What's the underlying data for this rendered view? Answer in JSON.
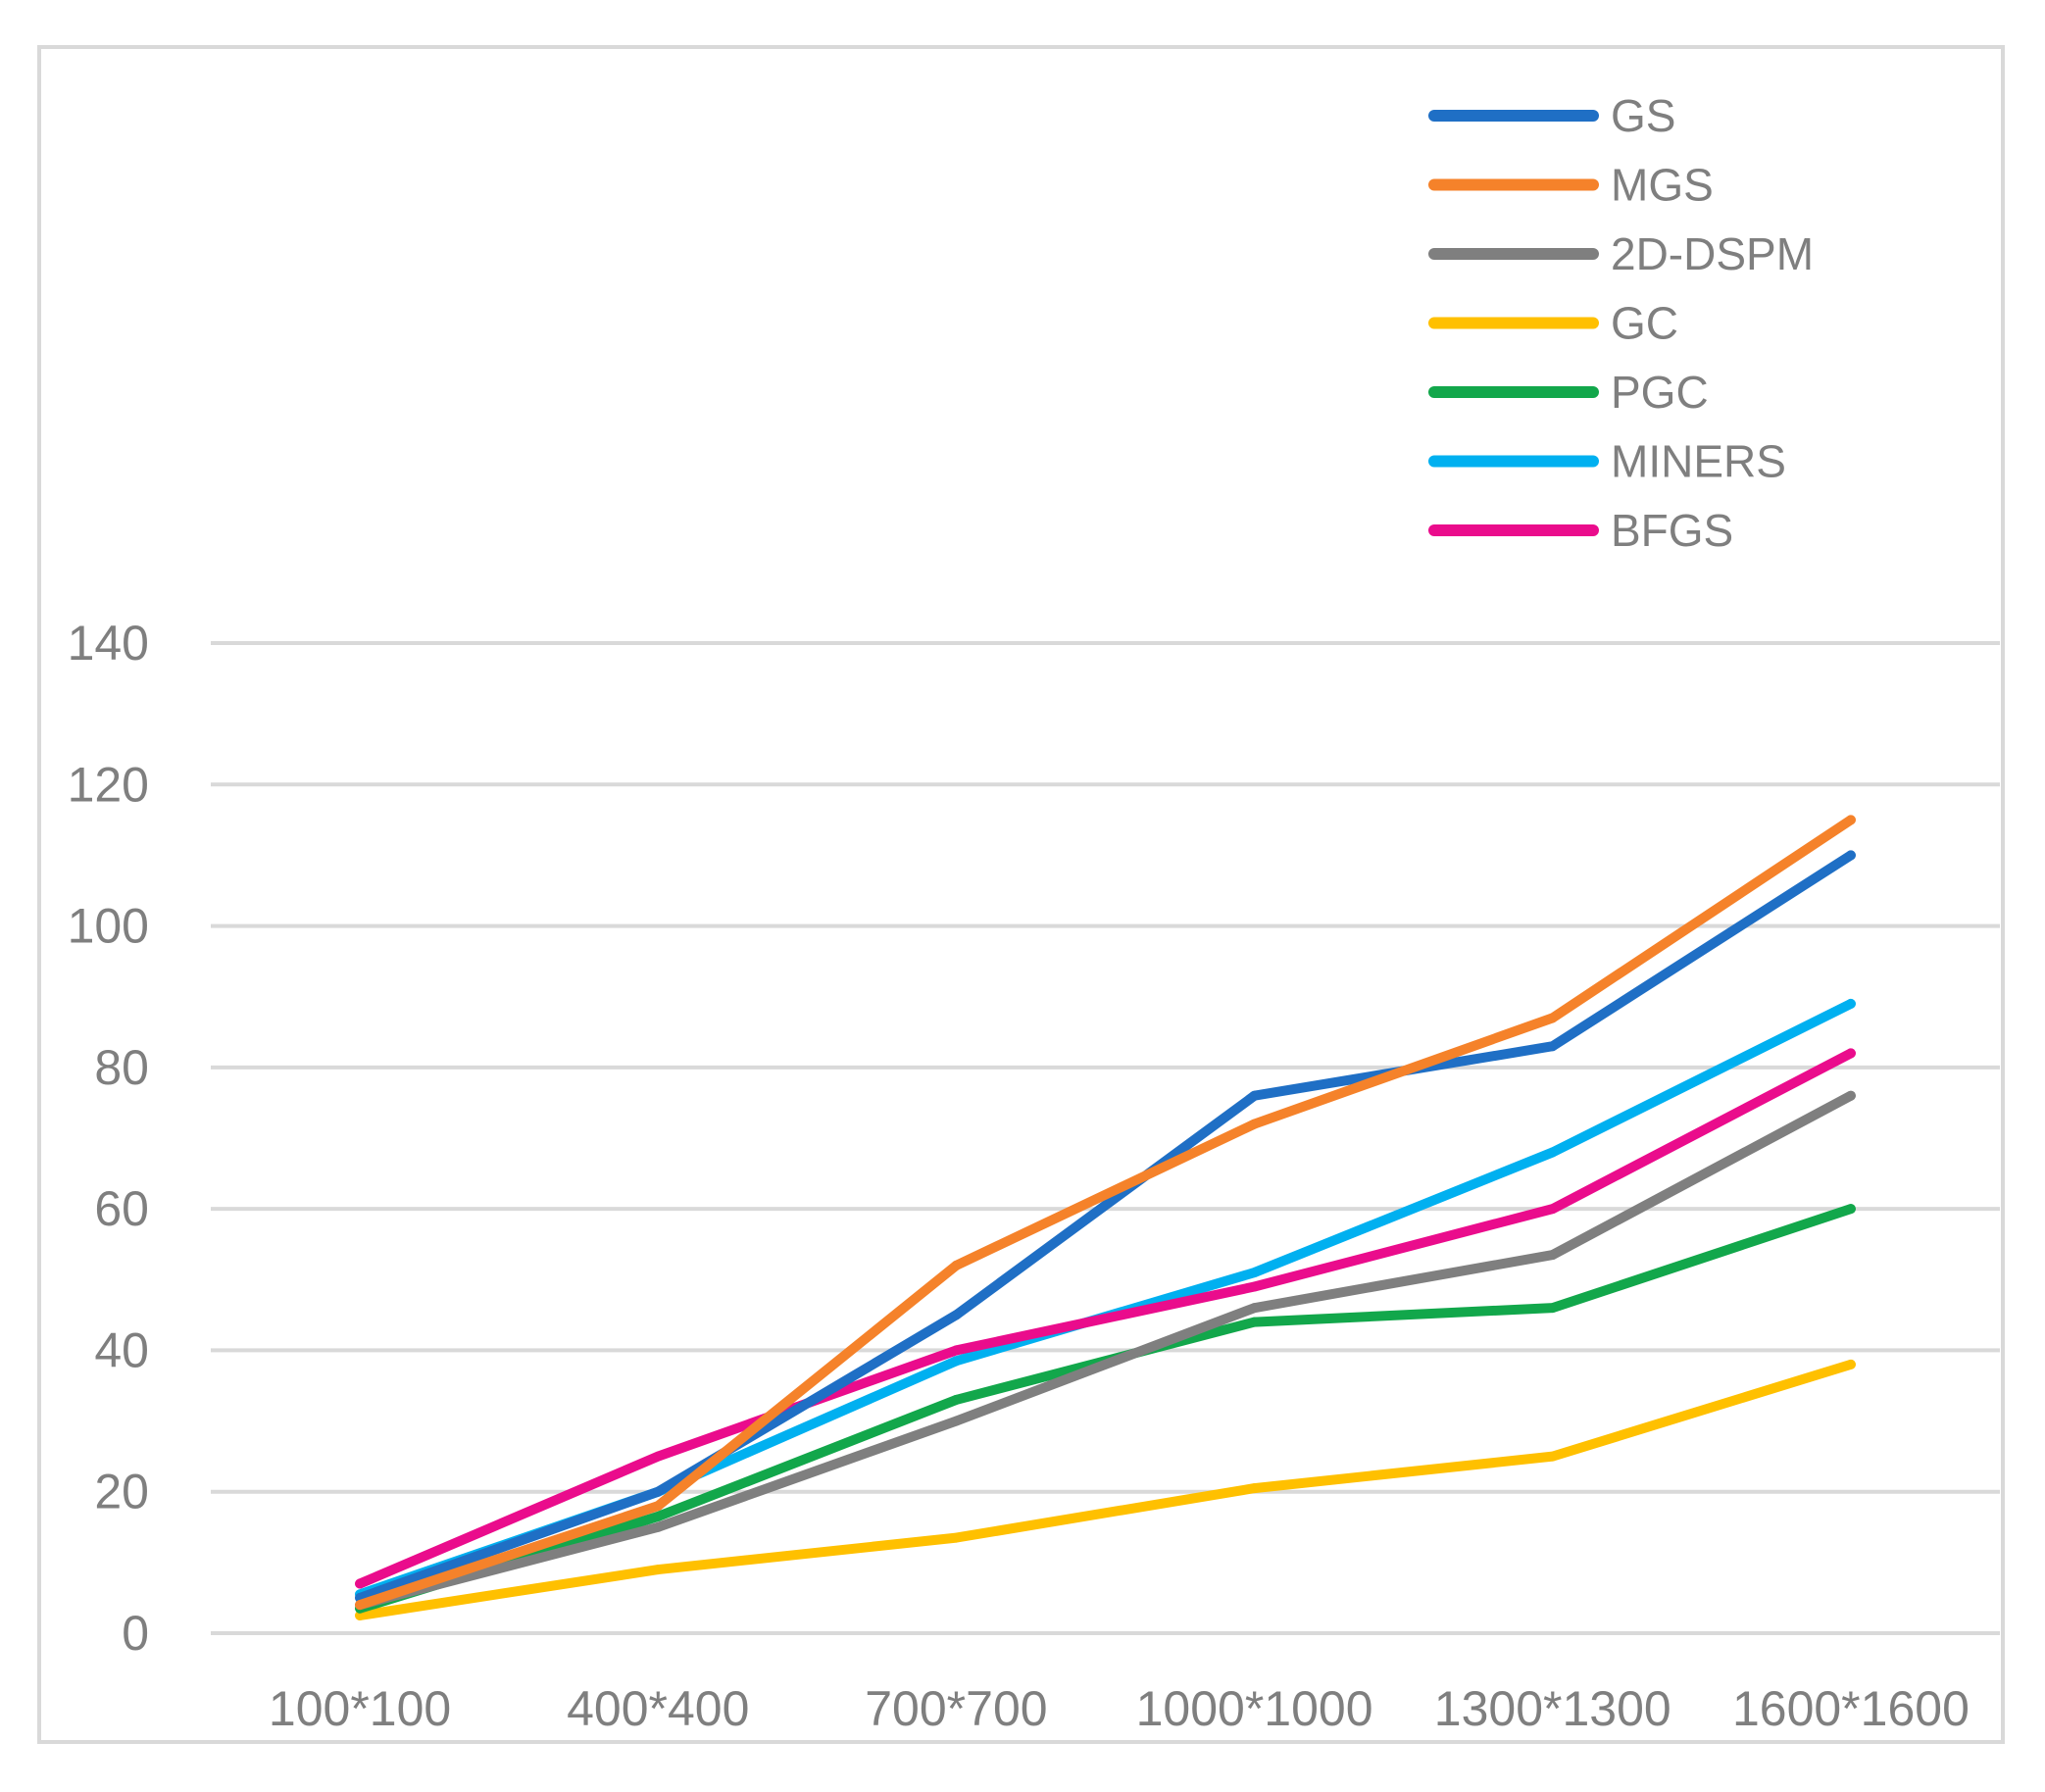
{
  "chart_data": {
    "type": "line",
    "title": "",
    "xlabel": "",
    "ylabel": "",
    "ylim": [
      0,
      140
    ],
    "yticks": [
      "0",
      "20",
      "40",
      "60",
      "80",
      "100",
      "120",
      "140"
    ],
    "grid": true,
    "legend_position": "top-right",
    "categories": [
      "100*100",
      "400*400",
      "700*700",
      "1000*1000",
      "1300*1300",
      "1600*1600"
    ],
    "series": [
      {
        "name": "GS",
        "color": "#1f6fc5",
        "values": [
          5,
          20,
          45,
          76,
          83,
          110
        ]
      },
      {
        "name": "MGS",
        "color": "#f5822a",
        "values": [
          4,
          18,
          52,
          72,
          87,
          115
        ]
      },
      {
        "name": "2D-DSPM",
        "color": "#7f7f7f",
        "values": [
          4,
          15,
          30,
          46,
          53.5,
          76
        ]
      },
      {
        "name": "GC",
        "color": "#ffc000",
        "values": [
          2.5,
          9,
          13.5,
          20.5,
          25,
          38
        ]
      },
      {
        "name": "PGC",
        "color": "#12a74b",
        "values": [
          3.5,
          16.5,
          33,
          44,
          46,
          60
        ]
      },
      {
        "name": "MINERS",
        "color": "#00b0f0",
        "values": [
          5.5,
          20,
          38.5,
          51,
          68,
          89
        ]
      },
      {
        "name": "BFGS",
        "color": "#ea0c8c",
        "values": [
          7,
          25,
          40,
          49,
          60,
          82
        ]
      }
    ]
  }
}
